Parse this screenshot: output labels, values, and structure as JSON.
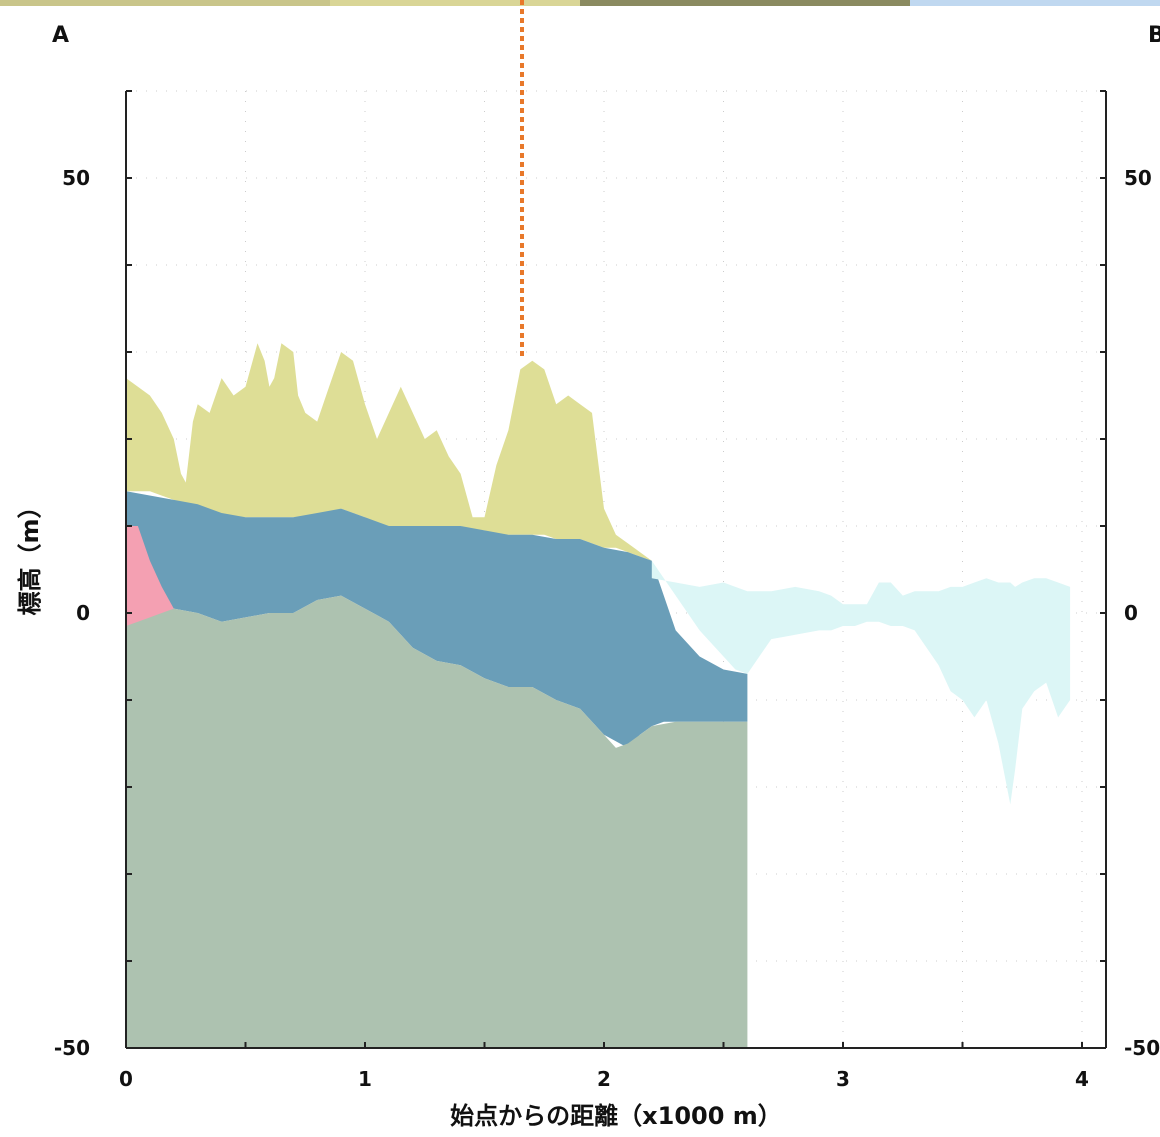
{
  "chart_data": {
    "type": "area",
    "title": "",
    "xlabel": "始点からの距離（x1000 m）",
    "ylabel": "標高（m）",
    "xlim": [
      0,
      4.1
    ],
    "ylim": [
      -50,
      60
    ],
    "x_ticks": [
      0,
      1,
      2,
      3,
      4
    ],
    "y_ticks": [
      -50,
      0,
      50
    ],
    "grid": true,
    "corner_labels": {
      "left": "A",
      "right": "B"
    },
    "colors": {
      "surface": "#dede96",
      "upper_layer": "#6a9eb8",
      "base_layer": "#adc2b0",
      "pink_layer": "#f4a0b2",
      "water": "#dcf6f6",
      "guide_line": "#e8782a",
      "top_strip": [
        "#c9c58a",
        "#d9d596",
        "#8a8a60",
        "#c0d8f0"
      ]
    },
    "series": [
      {
        "key": "surface",
        "x": [
          0,
          0.05,
          0.1,
          0.15,
          0.2,
          0.23,
          0.25,
          0.28,
          0.3,
          0.35,
          0.4,
          0.45,
          0.5,
          0.55,
          0.58,
          0.6,
          0.62,
          0.65,
          0.7,
          0.72,
          0.75,
          0.8,
          0.85,
          0.9,
          0.95,
          1.0,
          1.05,
          1.1,
          1.15,
          1.2,
          1.25,
          1.3,
          1.35,
          1.4,
          1.45,
          1.5,
          1.55,
          1.6,
          1.65,
          1.7,
          1.75,
          1.8,
          1.85,
          1.9,
          1.95,
          2.0,
          2.05,
          2.1,
          2.15,
          2.2
        ],
        "y_top": [
          27,
          26,
          25,
          23,
          20,
          16,
          15,
          22,
          24,
          23,
          27,
          25,
          26,
          31,
          29,
          26,
          27,
          31,
          30,
          25,
          23,
          22,
          26,
          30,
          29,
          24,
          20,
          23,
          26,
          23,
          20,
          21,
          18,
          16,
          11,
          11,
          17,
          21,
          28,
          29,
          28,
          24,
          25,
          24,
          23,
          12,
          9,
          8,
          7,
          6
        ],
        "y_bottom": [
          14,
          14,
          14,
          13.5,
          13,
          12.5,
          12.5,
          12,
          11.5,
          11,
          11,
          11,
          11,
          11,
          11,
          11,
          11,
          11,
          11,
          11,
          11,
          11,
          11.5,
          12,
          11.5,
          11,
          10,
          10,
          10,
          10,
          10,
          10,
          10,
          10,
          9.5,
          9.5,
          9,
          9,
          9,
          9,
          9,
          8.5,
          8.5,
          8.5,
          8,
          7.5,
          7.5,
          7,
          6.5,
          6
        ]
      },
      {
        "key": "upper_layer",
        "x": [
          0,
          0.2,
          0.3,
          0.4,
          0.5,
          0.6,
          0.7,
          0.8,
          0.9,
          1.0,
          1.1,
          1.2,
          1.3,
          1.4,
          1.5,
          1.6,
          1.7,
          1.8,
          1.9,
          2.0,
          2.1,
          2.15,
          2.2,
          2.25,
          2.3,
          2.4,
          2.5,
          2.6
        ],
        "y_top": [
          14,
          13,
          12.5,
          11.5,
          11,
          11,
          11,
          11.5,
          12,
          11,
          10,
          10,
          10,
          10,
          9.5,
          9,
          9,
          8.5,
          8.5,
          7.5,
          7,
          6.5,
          6,
          2,
          -2,
          -5,
          -6.5,
          -7
        ],
        "y_bottom": [
          -1,
          0.5,
          0,
          -1,
          -0.5,
          0,
          0,
          1.5,
          2,
          0.5,
          -1,
          -4,
          -5.5,
          -6,
          -7.5,
          -8.5,
          -8.5,
          -10,
          -11,
          -14,
          -15.5,
          -14,
          -13,
          -12.5,
          -12.5,
          -12.5,
          -12.5,
          -12.5
        ]
      },
      {
        "key": "base_layer",
        "x": [
          0,
          0.1,
          0.2,
          0.3,
          0.4,
          0.5,
          0.6,
          0.7,
          0.8,
          0.9,
          1.0,
          1.1,
          1.2,
          1.3,
          1.4,
          1.5,
          1.6,
          1.7,
          1.8,
          1.9,
          2.0,
          2.05,
          2.1,
          2.2,
          2.3,
          2.4,
          2.5,
          2.6
        ],
        "y_top": [
          -1,
          0,
          0.5,
          0,
          -1,
          -0.5,
          0,
          0,
          1.5,
          2,
          0.5,
          -1,
          -4,
          -5.5,
          -6,
          -7.5,
          -8.5,
          -8.5,
          -10,
          -11,
          -14,
          -15.5,
          -15,
          -13,
          -12.5,
          -12.5,
          -12.5,
          -12.5
        ],
        "y_bottom": [
          -50,
          -50,
          -50,
          -50,
          -50,
          -50,
          -50,
          -50,
          -50,
          -50,
          -50,
          -50,
          -50,
          -50,
          -50,
          -50,
          -50,
          -50,
          -50,
          -50,
          -50,
          -50,
          -50,
          -50,
          -50,
          -50,
          -50,
          -50
        ]
      },
      {
        "key": "pink_layer",
        "x": [
          0,
          0.05,
          0.1,
          0.15,
          0.2
        ],
        "y_top": [
          10,
          10,
          6,
          3,
          0.5
        ],
        "y_bottom": [
          -1.5,
          -1,
          -0.5,
          0,
          0.5
        ]
      },
      {
        "key": "water",
        "x": [
          2.2,
          2.3,
          2.4,
          2.5,
          2.55,
          2.6,
          2.7,
          2.8,
          2.9,
          2.95,
          3.0,
          3.05,
          3.1,
          3.15,
          3.2,
          3.25,
          3.3,
          3.35,
          3.4,
          3.45,
          3.5,
          3.55,
          3.6,
          3.65,
          3.7,
          3.72,
          3.75,
          3.8,
          3.85,
          3.9,
          3.95
        ],
        "y_top": [
          4,
          3.5,
          3,
          3.5,
          3,
          2.5,
          2.5,
          3,
          2.5,
          2,
          1,
          1,
          1,
          3.5,
          3.5,
          2,
          2.5,
          2.5,
          2.5,
          3,
          3,
          3.5,
          4,
          3.5,
          3.5,
          3,
          3.5,
          4,
          4,
          3.5,
          3
        ],
        "y_bottom": [
          6,
          2,
          -2,
          -5,
          -6.5,
          -7,
          -3,
          -2.5,
          -2,
          -2,
          -1.5,
          -1.5,
          -1,
          -1,
          -1.5,
          -1.5,
          -2,
          -4,
          -6,
          -9,
          -10,
          -12,
          -10,
          -15,
          -22,
          -18,
          -11,
          -9,
          -8,
          -12,
          -10
        ]
      }
    ]
  }
}
